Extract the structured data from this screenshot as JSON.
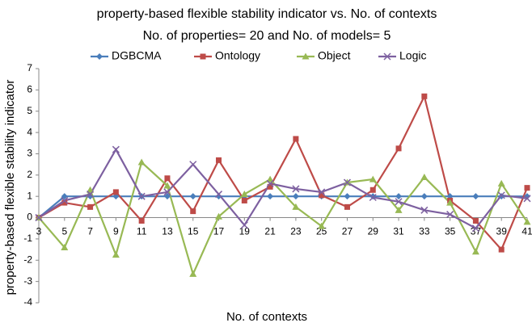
{
  "chart_data": {
    "type": "line",
    "title": "property-based  flexible stability indicator vs. No. of contexts",
    "subtitle": "No. of properties= 20 and  No. of models=  5",
    "x_label": "No. of contexts",
    "y_label": "property-based flexible stability indicator",
    "x": [
      3,
      5,
      7,
      9,
      11,
      13,
      15,
      17,
      19,
      21,
      23,
      25,
      27,
      29,
      31,
      33,
      35,
      37,
      39,
      41
    ],
    "xlim": [
      3,
      41
    ],
    "xticks": [
      3,
      5,
      7,
      9,
      11,
      13,
      15,
      17,
      19,
      21,
      23,
      25,
      27,
      29,
      31,
      33,
      35,
      37,
      39,
      41
    ],
    "ylim": [
      -4,
      7
    ],
    "yticks": [
      -4,
      -3,
      -2,
      -1,
      0,
      1,
      2,
      3,
      4,
      5,
      6,
      7
    ],
    "legend": "top",
    "series": [
      {
        "name": "DGBCMA",
        "color": "#4a7ebb",
        "marker": "diamond",
        "values": [
          0,
          1,
          1,
          1,
          1,
          1,
          1,
          1,
          1,
          1,
          1,
          1,
          1,
          1,
          1,
          1,
          1,
          1,
          1,
          1
        ]
      },
      {
        "name": "Ontology",
        "color": "#be4b48",
        "marker": "square",
        "values": [
          0,
          0.7,
          0.5,
          1.2,
          -0.15,
          1.85,
          0.3,
          2.7,
          0.8,
          1.45,
          3.7,
          1.05,
          0.5,
          1.3,
          3.25,
          5.7,
          0.8,
          -0.15,
          -1.5,
          1.4
        ]
      },
      {
        "name": "Object",
        "color": "#98b954",
        "marker": "triangle",
        "values": [
          0,
          -1.4,
          1.3,
          -1.75,
          2.6,
          1.5,
          -2.65,
          0.05,
          1.1,
          1.8,
          0.5,
          -0.4,
          1.65,
          1.8,
          0.35,
          1.9,
          0.7,
          -1.6,
          1.6,
          -0.2
        ]
      },
      {
        "name": "Logic",
        "color": "#7d60a0",
        "marker": "x",
        "values": [
          0,
          0.8,
          1.1,
          3.2,
          1.0,
          1.2,
          2.5,
          1.1,
          -0.35,
          1.6,
          1.35,
          1.2,
          1.65,
          0.95,
          0.75,
          0.35,
          0.15,
          -0.5,
          1.05,
          0.9
        ]
      }
    ]
  }
}
